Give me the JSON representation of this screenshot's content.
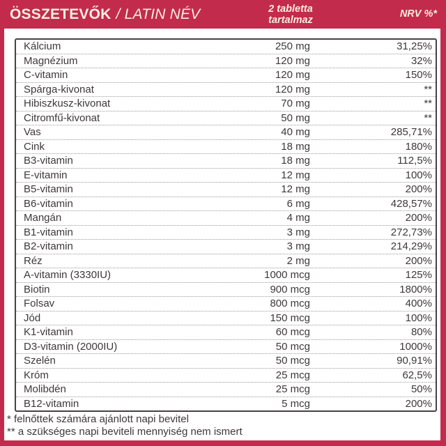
{
  "colors": {
    "frame_red": "#c32b4d",
    "header_text": "#f6f0df",
    "body_text": "#3e3839",
    "table_border": "#474143"
  },
  "header": {
    "title": "ÖSSZETEVŐK",
    "title_latin": "/ LATIN NÉV",
    "amount_line1": "2 tabletta",
    "amount_line2": "tartalmaz",
    "nrv": "NRV %*"
  },
  "table": {
    "rows": [
      {
        "name": "Kálcium",
        "amount": "250 mg",
        "nrv": "31,25%"
      },
      {
        "name": "Magnézium",
        "amount": "120 mg",
        "nrv": "32%"
      },
      {
        "name": "C-vitamin",
        "amount": "120 mg",
        "nrv": "150%"
      },
      {
        "name": "Spárga-kivonat",
        "amount": "120 mg",
        "nrv": "**"
      },
      {
        "name": "Hibiszkusz-kivonat",
        "amount": "70 mg",
        "nrv": "**"
      },
      {
        "name": "Citromfű-kivonat",
        "amount": "50 mg",
        "nrv": "**"
      },
      {
        "name": "Vas",
        "amount": "40 mg",
        "nrv": "285,71%"
      },
      {
        "name": "Cink",
        "amount": "18 mg",
        "nrv": "180%"
      },
      {
        "name": "B3-vitamin",
        "amount": "18 mg",
        "nrv": "112,5%"
      },
      {
        "name": "E-vitamin",
        "amount": "12 mg",
        "nrv": "100%"
      },
      {
        "name": "B5-vitamin",
        "amount": "12 mg",
        "nrv": "200%"
      },
      {
        "name": "B6-vitamin",
        "amount": "6 mg",
        "nrv": "428,57%"
      },
      {
        "name": "Mangán",
        "amount": "4 mg",
        "nrv": "200%"
      },
      {
        "name": "B1-vitamin",
        "amount": "3 mg",
        "nrv": "272,73%"
      },
      {
        "name": "B2-vitamin",
        "amount": "3 mg",
        "nrv": "214,29%"
      },
      {
        "name": "Réz",
        "amount": "2 mg",
        "nrv": "200%"
      },
      {
        "name": "A-vitamin (3330IU)",
        "amount": "1000 mcg",
        "nrv": "125%"
      },
      {
        "name": "Biotin",
        "amount": "900 mcg",
        "nrv": "1800%"
      },
      {
        "name": "Folsav",
        "amount": "800 mcg",
        "nrv": "400%"
      },
      {
        "name": "Jód",
        "amount": "150 mcg",
        "nrv": "100%"
      },
      {
        "name": "K1-vitamin",
        "amount": "60 mcg",
        "nrv": "80%"
      },
      {
        "name": "D3-vitamin (2000IU)",
        "amount": "50 mcg",
        "nrv": "1000%"
      },
      {
        "name": "Szelén",
        "amount": "50 mcg",
        "nrv": "90,91%"
      },
      {
        "name": "Króm",
        "amount": "25 mcg",
        "nrv": "62,5%"
      },
      {
        "name": "Molibdén",
        "amount": "25 mcg",
        "nrv": "50%"
      },
      {
        "name": "B12-vitamin",
        "amount": "5 mcg",
        "nrv": "200%"
      }
    ]
  },
  "footnotes": {
    "single_star": "* felnőttek számára ajánlott napi bevitel",
    "double_star": "** a szükséges napi beviteli mennyiség nem ismert"
  }
}
